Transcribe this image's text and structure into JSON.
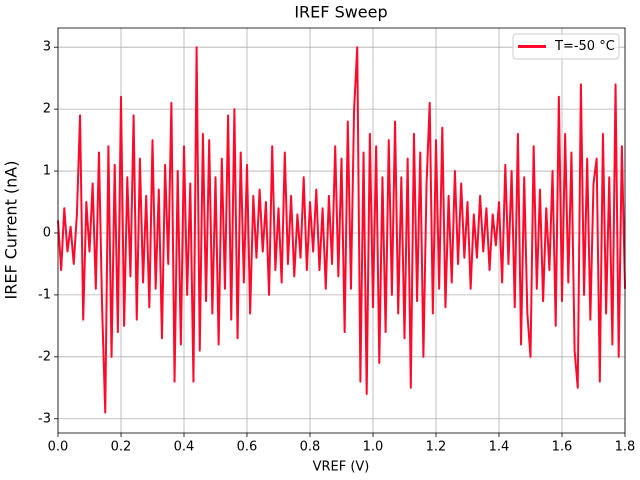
{
  "chart_data": {
    "type": "line",
    "title": "IREF Sweep",
    "x_label": "VREF (V)",
    "y_label": "IREF Current (nA)",
    "x": [
      0,
      0.01,
      0.02,
      0.03,
      0.04,
      0.05,
      0.06,
      0.07,
      0.08,
      0.09,
      0.1,
      0.11,
      0.12,
      0.13,
      0.14,
      0.15,
      0.16,
      0.17,
      0.18,
      0.19,
      0.2,
      0.21,
      0.22,
      0.23,
      0.24,
      0.25,
      0.26,
      0.27,
      0.28,
      0.29,
      0.3,
      0.31,
      0.32,
      0.33,
      0.34,
      0.35,
      0.36,
      0.37,
      0.38,
      0.39,
      0.4,
      0.41,
      0.42,
      0.43,
      0.44,
      0.45,
      0.46,
      0.47,
      0.48,
      0.49,
      0.5,
      0.51,
      0.52,
      0.53,
      0.54,
      0.55,
      0.56,
      0.57,
      0.58,
      0.59,
      0.6,
      0.61,
      0.62,
      0.63,
      0.64,
      0.65,
      0.66,
      0.67,
      0.68,
      0.69,
      0.7,
      0.71,
      0.72,
      0.73,
      0.74,
      0.75,
      0.76,
      0.77,
      0.78,
      0.79,
      0.8,
      0.81,
      0.82,
      0.83,
      0.84,
      0.85,
      0.86,
      0.87,
      0.88,
      0.89,
      0.9,
      0.91,
      0.92,
      0.93,
      0.94,
      0.95,
      0.96,
      0.97,
      0.98,
      0.99,
      1,
      1.01,
      1.02,
      1.03,
      1.04,
      1.05,
      1.06,
      1.07,
      1.08,
      1.09,
      1.1,
      1.11,
      1.12,
      1.13,
      1.14,
      1.15,
      1.16,
      1.17,
      1.18,
      1.19,
      1.2,
      1.21,
      1.22,
      1.23,
      1.24,
      1.25,
      1.26,
      1.27,
      1.28,
      1.29,
      1.3,
      1.31,
      1.32,
      1.33,
      1.34,
      1.35,
      1.36,
      1.37,
      1.38,
      1.39,
      1.4,
      1.41,
      1.42,
      1.43,
      1.44,
      1.45,
      1.46,
      1.47,
      1.48,
      1.49,
      1.5,
      1.51,
      1.52,
      1.53,
      1.54,
      1.55,
      1.56,
      1.57,
      1.58,
      1.59,
      1.6,
      1.61,
      1.62,
      1.63,
      1.64,
      1.65,
      1.66,
      1.67,
      1.68,
      1.69,
      1.7,
      1.71,
      1.72,
      1.73,
      1.74,
      1.75,
      1.76,
      1.77,
      1.78,
      1.79,
      1.8
    ],
    "series": [
      {
        "name": "T=-50 °C",
        "color": "#ff0a2a",
        "values": [
          0.2,
          -0.6,
          0.4,
          -0.3,
          0.1,
          -0.5,
          0.3,
          1.9,
          -1.4,
          0.5,
          -0.3,
          0.8,
          -0.9,
          1.3,
          -1.2,
          -2.9,
          1.4,
          -2.0,
          1.1,
          -1.6,
          2.2,
          -1.5,
          0.9,
          -0.7,
          1.9,
          -1.4,
          1.2,
          -0.8,
          0.6,
          -1.2,
          1.5,
          -0.9,
          0.7,
          -1.7,
          1.1,
          -0.5,
          2.1,
          -2.4,
          1.0,
          -1.8,
          1.4,
          -1.0,
          0.8,
          -2.4,
          3.0,
          -1.9,
          1.6,
          -1.1,
          1.5,
          -1.3,
          0.9,
          -1.8,
          1.2,
          -0.9,
          1.9,
          -1.4,
          2.0,
          -1.7,
          1.3,
          -0.8,
          1.1,
          -1.3,
          0.6,
          -0.4,
          0.7,
          -0.3,
          0.5,
          -1.0,
          1.4,
          -0.6,
          0.4,
          -0.8,
          1.3,
          -0.5,
          0.6,
          -0.7,
          0.3,
          -0.4,
          0.9,
          -0.6,
          0.5,
          -0.3,
          0.7,
          -0.6,
          0.4,
          -0.9,
          0.6,
          -0.5,
          1.4,
          -0.7,
          1.2,
          -1.6,
          1.8,
          -0.9,
          2.0,
          3.0,
          -2.4,
          1.3,
          -2.6,
          1.6,
          -1.2,
          1.4,
          -2.1,
          0.9,
          -1.6,
          1.5,
          -1.0,
          1.8,
          -1.3,
          0.9,
          -1.7,
          1.2,
          -2.5,
          1.6,
          -1.1,
          1.3,
          -2.0,
          0.8,
          2.1,
          -1.3,
          1.5,
          -0.9,
          1.7,
          -1.2,
          0.6,
          -0.8,
          1.0,
          -0.5,
          0.8,
          -0.4,
          0.5,
          -0.9,
          0.3,
          -0.4,
          0.6,
          -0.3,
          0.4,
          -0.6,
          0.3,
          -0.2,
          0.5,
          -0.8,
          1.1,
          -0.5,
          1.0,
          -1.2,
          1.6,
          -1.8,
          0.9,
          -1.3,
          -2.0,
          1.4,
          -0.9,
          0.7,
          -1.1,
          0.4,
          -0.6,
          1.0,
          -1.5,
          2.2,
          -1.1,
          1.6,
          -0.8,
          1.3,
          -1.9,
          -2.5,
          2.4,
          -1.0,
          1.2,
          -1.4,
          0.8,
          1.2,
          -2.4,
          1.6,
          -1.3,
          0.9,
          -1.8,
          2.4,
          -2.0,
          1.4,
          -0.9
        ]
      }
    ],
    "xlim": [
      0,
      1.8
    ],
    "ylim": [
      -3.23,
      3.31
    ],
    "xticks": [
      {
        "value": 0,
        "label": "0.0"
      },
      0.2,
      0.4,
      0.6,
      0.8,
      {
        "value": 1,
        "label": "1.0"
      },
      1.2,
      1.4,
      1.6,
      1.8
    ],
    "yticks": [
      -3,
      -2,
      -1,
      0,
      1,
      2,
      3
    ],
    "grid": true,
    "legend": "upper right"
  }
}
